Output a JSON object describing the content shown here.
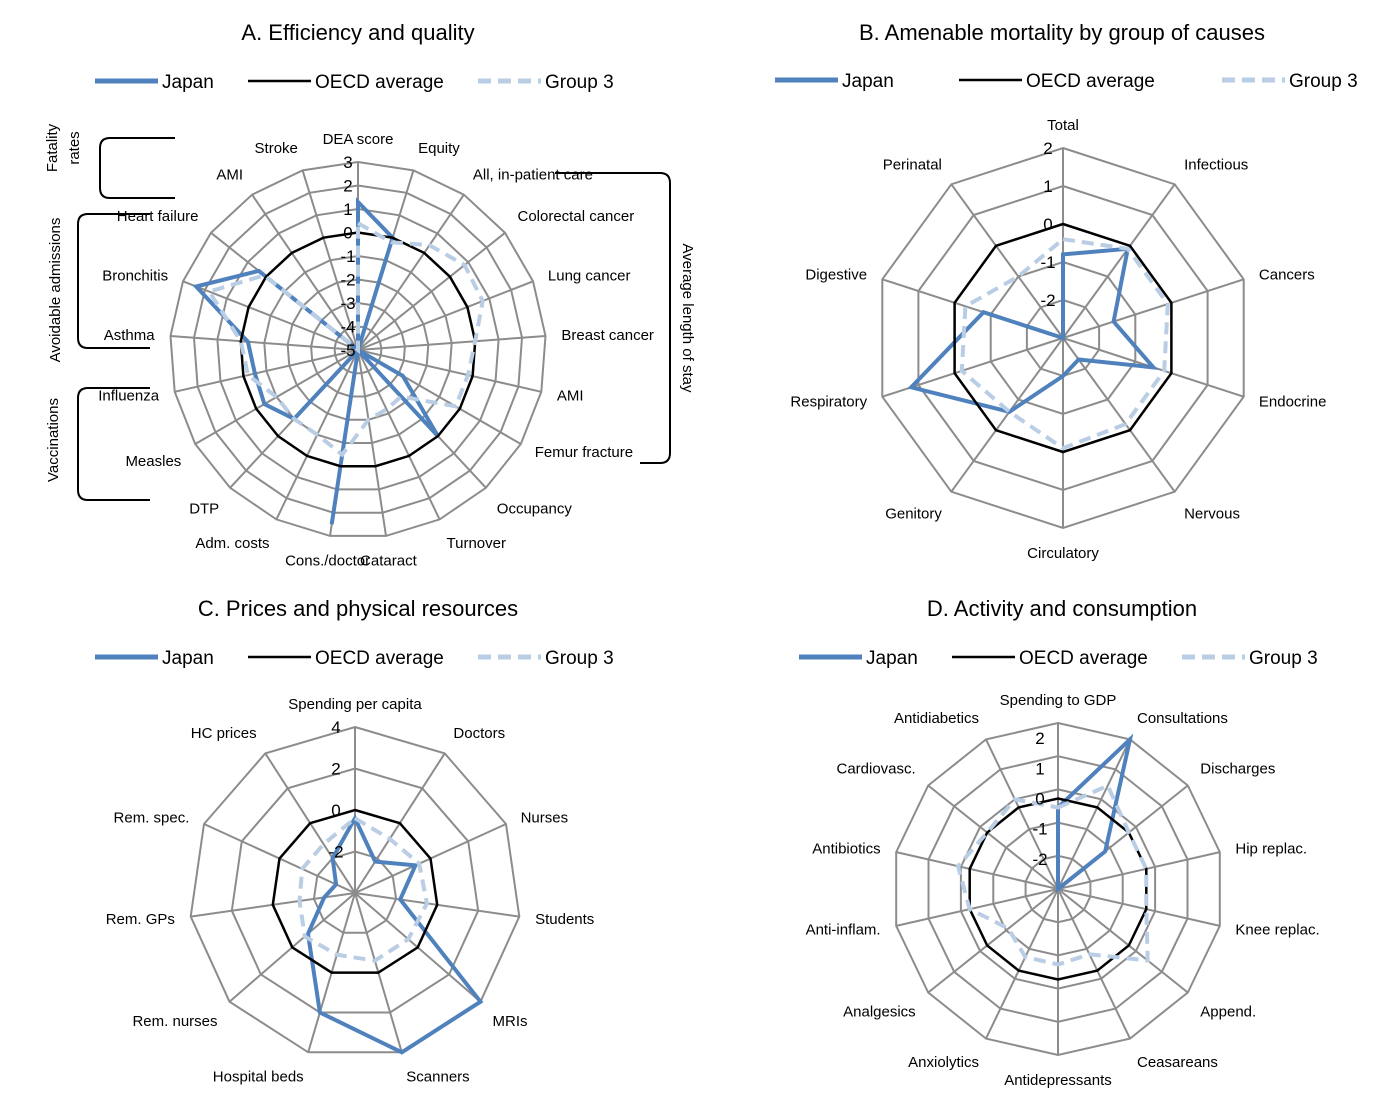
{
  "legend": [
    "Japan",
    "OECD average",
    "Group 3"
  ],
  "series_colors": {
    "Japan": "#4f81bd",
    "OECD average": "#000000",
    "Group 3": "#b9cde5",
    "grid": "#8c8c8c"
  },
  "chart_data": [
    {
      "type": "radar",
      "title": "A. Efficiency and quality",
      "axes": [
        "DEA score",
        "Equity",
        "All, in-patient care",
        "Colorectal cancer",
        "Lung cancer",
        "Breast cancer",
        "AMI",
        "Femur fracture",
        "Occupancy",
        "Turnover",
        "Cataract",
        "Cons./doctor",
        "Adm. costs",
        "DTP",
        "Measles",
        "Influenza",
        "Asthma",
        "Bronchitis",
        "Heart failure",
        "AMI",
        "Stroke"
      ],
      "range": [
        -5,
        3
      ],
      "ticks": [
        3,
        2,
        1,
        0,
        -1,
        -2,
        -3,
        -4,
        -5
      ],
      "series": [
        {
          "name": "Japan",
          "values": [
            1.3,
            0.0,
            -5.0,
            -5.0,
            -5.0,
            -5.0,
            -5.0,
            -2.8,
            0.0,
            -5.0,
            -5.0,
            2.5,
            -5.0,
            -1.0,
            -0.4,
            -0.5,
            -0.3,
            2.4,
            0.4,
            -5.0,
            -5.0
          ]
        },
        {
          "name": "OECD average",
          "values": [
            0,
            0,
            0,
            0,
            0,
            0,
            0,
            0,
            0,
            0,
            0,
            0,
            0,
            0,
            0,
            0,
            0,
            0,
            0,
            0,
            0
          ]
        },
        {
          "name": "Group 3",
          "values": [
            0.4,
            -0.2,
            0.4,
            0.8,
            0.7,
            0.0,
            -0.2,
            -0.2,
            -2.3,
            -2.2,
            -2.0,
            -0.5,
            -1.0,
            -1.0,
            -1.0,
            -0.2,
            0.0,
            1.8,
            0.1,
            -5.0,
            -5.0
          ]
        }
      ],
      "group_labels": [
        "Fatality rates",
        "Avoidable admissions",
        "Vaccinations",
        "Average length of stay"
      ]
    },
    {
      "type": "radar",
      "title": "B. Amenable mortality by group of causes",
      "axes": [
        "Total",
        "Infectious",
        "Cancers",
        "Endocrine",
        "Nervous",
        "Circulatory",
        "Genitory",
        "Respiratory",
        "Digestive",
        "Perinatal"
      ],
      "range": [
        -3,
        2
      ],
      "ticks": [
        2,
        1,
        0,
        -1,
        -2
      ],
      "series": [
        {
          "name": "Japan",
          "values": [
            -0.8,
            -0.1,
            -1.6,
            -0.5,
            -2.3,
            -2.0,
            -0.6,
            1.2,
            -0.8,
            -3.0
          ]
        },
        {
          "name": "OECD average",
          "values": [
            0,
            0,
            0,
            0,
            0,
            0,
            0,
            0,
            0,
            0
          ]
        },
        {
          "name": "Group 3",
          "values": [
            -0.4,
            -0.1,
            -0.1,
            -0.2,
            -0.2,
            -0.1,
            -0.6,
            -0.2,
            -0.3,
            -1.0
          ]
        }
      ]
    },
    {
      "type": "radar",
      "title": "C. Prices and physical resources",
      "axes": [
        "Spending per capita",
        "Doctors",
        "Nurses",
        "Students",
        "MRIs",
        "Scanners",
        "Hospital beds",
        "Rem. nurses",
        "Rem. GPs",
        "Rem. spec.",
        "HC prices"
      ],
      "range": [
        -4,
        4
      ],
      "ticks": [
        4,
        2,
        0,
        -2
      ],
      "series": [
        {
          "name": "Japan",
          "values": [
            -0.4,
            -2.2,
            -0.8,
            -1.8,
            4.0,
            4.0,
            2.0,
            -1.0,
            -2.5,
            -3.0,
            -2.0
          ]
        },
        {
          "name": "OECD average",
          "values": [
            0,
            0,
            0,
            0,
            0,
            0,
            0,
            0,
            0,
            0,
            0
          ]
        },
        {
          "name": "Group 3",
          "values": [
            -0.4,
            -0.9,
            -0.6,
            -0.5,
            -0.6,
            -0.6,
            -0.9,
            -0.8,
            -1.3,
            -1.2,
            -1.2
          ]
        }
      ]
    },
    {
      "type": "radar",
      "title": "D. Activity and consumption",
      "axes": [
        "Spending to GDP",
        "Consultations",
        "Discharges",
        "Hip replac.",
        "Knee replac.",
        "Append.",
        "Ceasareans",
        "Antidepressants",
        "Anxiolytics",
        "Analgesics",
        "Anti-inflam.",
        "Antibiotics",
        "Cardiovasc.",
        "Antidiabetics"
      ],
      "range": [
        -3,
        2.5
      ],
      "ticks": [
        2,
        1,
        0,
        -1,
        -2
      ],
      "series": [
        {
          "name": "Japan",
          "values": [
            -0.3,
            2.5,
            -1.0,
            -3.0,
            -3.0,
            -3.0,
            -3.0,
            -3.0,
            -3.0,
            -3.0,
            -3.0,
            -3.0,
            -3.0,
            -3.0
          ]
        },
        {
          "name": "OECD average",
          "values": [
            0,
            0,
            0,
            0,
            0,
            0,
            0,
            0,
            0,
            0,
            0,
            0,
            0,
            0
          ]
        },
        {
          "name": "Group 3",
          "values": [
            -0.3,
            0.8,
            0.0,
            0.0,
            0.0,
            0.8,
            -0.6,
            -0.5,
            -0.5,
            -0.9,
            0.0,
            0.4,
            0.0,
            0.3
          ]
        }
      ]
    }
  ]
}
